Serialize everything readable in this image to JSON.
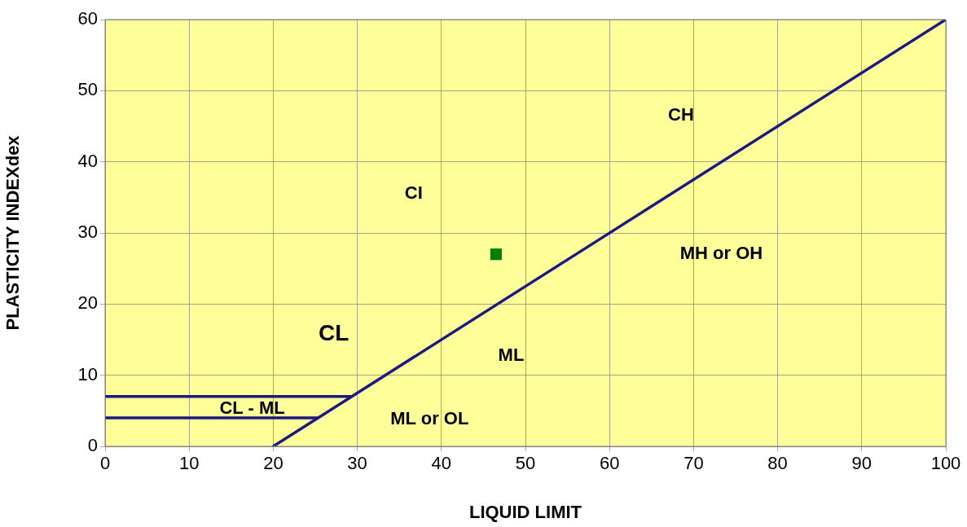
{
  "chart_data": {
    "type": "scatter",
    "xlabel": "LIQUID LIMIT",
    "ylabel": "PLASTICITY INDEXdex",
    "xlim": [
      0,
      100
    ],
    "xticks": [
      0,
      10,
      20,
      30,
      40,
      50,
      60,
      70,
      80,
      90,
      100
    ],
    "ylim": [
      0,
      60
    ],
    "yticks": [
      0,
      10,
      20,
      30,
      40,
      50,
      60
    ],
    "grid": true,
    "legend": false,
    "marker": "square",
    "series": [
      {
        "type": "line",
        "color": "#1a1a80",
        "x": [
          20,
          100
        ],
        "values": [
          0,
          60
        ],
        "marker": "none",
        "line_style": "solid"
      },
      {
        "type": "line",
        "color": "#1a1a80",
        "x": [
          0,
          29.3
        ],
        "values": [
          7,
          7
        ],
        "marker": "none",
        "line_style": "solid"
      },
      {
        "type": "line",
        "color": "#1a1a80",
        "x": [
          0,
          25.3
        ],
        "values": [
          4,
          4
        ],
        "marker": "none",
        "line_style": "solid"
      },
      {
        "color": "#008000",
        "x": [
          46.5
        ],
        "values": [
          27
        ]
      }
    ],
    "annotations": [
      "CH",
      "CI",
      "MH or OH",
      "CL",
      "ML",
      "CL - ML",
      "ML or OL"
    ]
  }
}
